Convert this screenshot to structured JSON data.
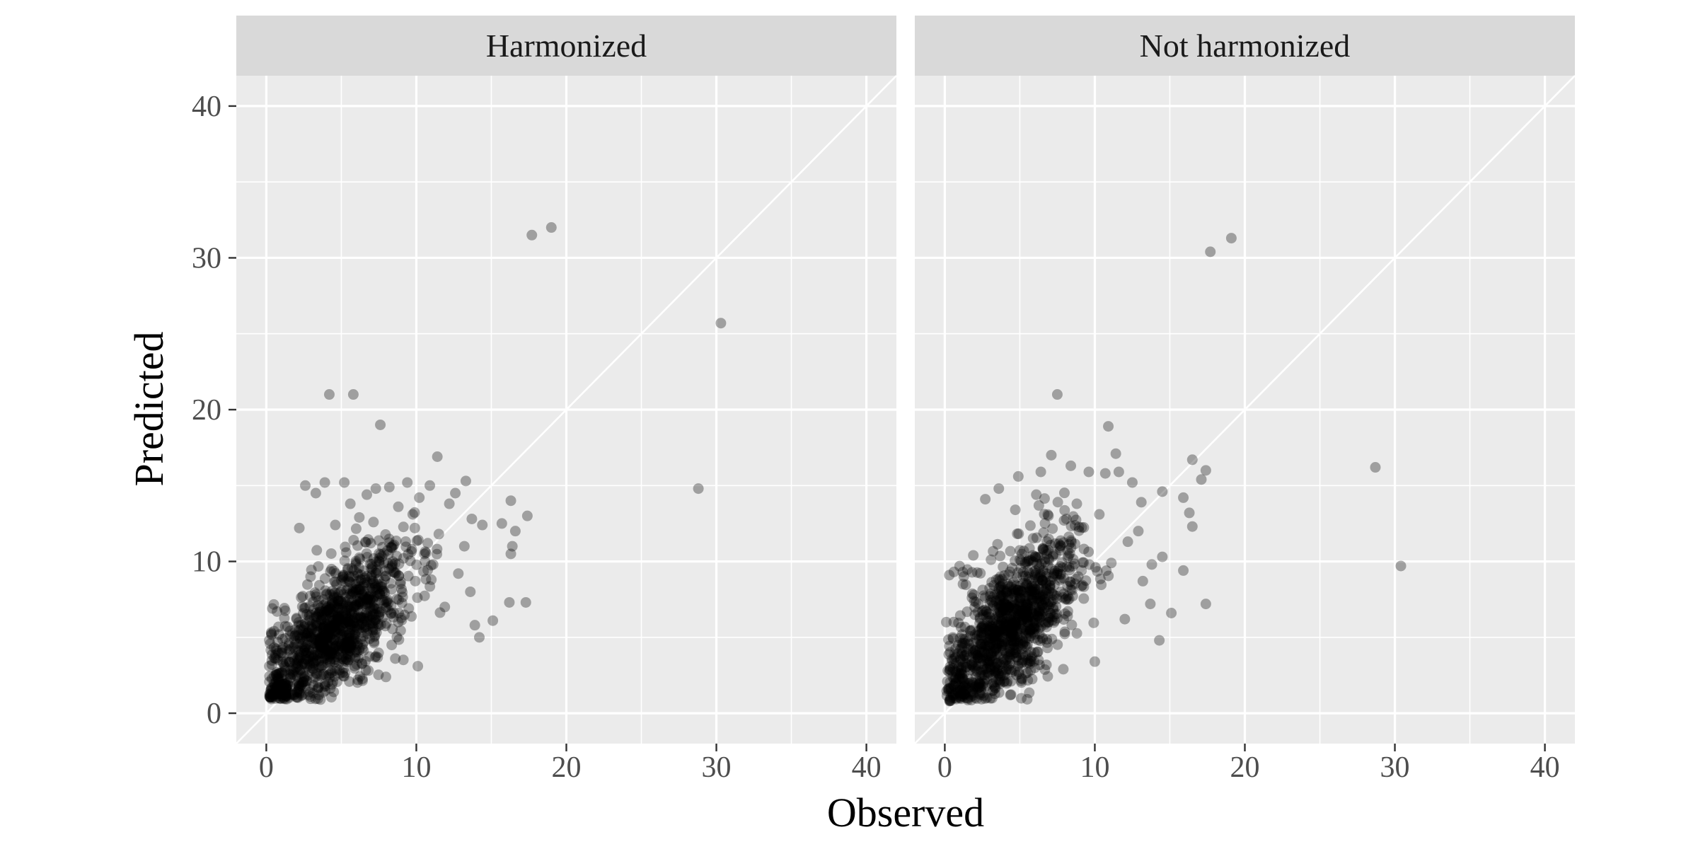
{
  "chart_data": {
    "type": "scatter",
    "xlabel": "Observed",
    "ylabel": "Predicted",
    "xlim": [
      -2,
      42
    ],
    "ylim": [
      -2,
      42
    ],
    "x_ticks": [
      0,
      10,
      20,
      30,
      40
    ],
    "y_ticks": [
      0,
      10,
      20,
      30,
      40
    ],
    "grid": true,
    "reference_line": "y = x",
    "point_color": "#000000",
    "point_opacity": 0.32,
    "background_color": "#ebebeb",
    "strip_color": "#d9d9d9",
    "panels": [
      {
        "strip": "Harmonized",
        "cluster": {
          "x_center": 4.5,
          "y_center": 5.2,
          "x_spread": 2.6,
          "y_spread": 2.6,
          "slope": 0.75,
          "count": 1150,
          "x_min": 0.2,
          "y_min": 0.9
        },
        "points": [
          {
            "x": 17.7,
            "y": 31.5
          },
          {
            "x": 19.0,
            "y": 32.0
          },
          {
            "x": 30.3,
            "y": 25.7
          },
          {
            "x": 28.8,
            "y": 14.8
          },
          {
            "x": 4.2,
            "y": 21.0
          },
          {
            "x": 5.8,
            "y": 21.0
          },
          {
            "x": 7.6,
            "y": 19.0
          },
          {
            "x": 11.4,
            "y": 16.9
          },
          {
            "x": 16.3,
            "y": 14.0
          },
          {
            "x": 17.4,
            "y": 13.0
          },
          {
            "x": 16.6,
            "y": 12.0
          },
          {
            "x": 16.4,
            "y": 11.0
          },
          {
            "x": 16.3,
            "y": 10.5
          },
          {
            "x": 15.7,
            "y": 12.5
          },
          {
            "x": 16.2,
            "y": 7.3
          },
          {
            "x": 17.3,
            "y": 7.3
          },
          {
            "x": 15.1,
            "y": 6.1
          },
          {
            "x": 14.2,
            "y": 5.0
          },
          {
            "x": 13.9,
            "y": 5.8
          },
          {
            "x": 13.7,
            "y": 12.8
          },
          {
            "x": 14.4,
            "y": 12.4
          },
          {
            "x": 13.3,
            "y": 15.3
          },
          {
            "x": 12.6,
            "y": 14.5
          },
          {
            "x": 12.2,
            "y": 13.8
          },
          {
            "x": 13.2,
            "y": 11.0
          },
          {
            "x": 13.6,
            "y": 8.0
          },
          {
            "x": 12.8,
            "y": 9.2
          },
          {
            "x": 11.9,
            "y": 7.0
          },
          {
            "x": 10.9,
            "y": 15.0
          },
          {
            "x": 10.2,
            "y": 14.2
          },
          {
            "x": 9.4,
            "y": 15.2
          },
          {
            "x": 8.2,
            "y": 14.9
          },
          {
            "x": 7.3,
            "y": 14.8
          },
          {
            "x": 5.2,
            "y": 15.2
          },
          {
            "x": 3.9,
            "y": 15.2
          },
          {
            "x": 2.6,
            "y": 15.0
          },
          {
            "x": 3.3,
            "y": 14.5
          },
          {
            "x": 5.6,
            "y": 13.8
          },
          {
            "x": 6.7,
            "y": 14.4
          },
          {
            "x": 8.8,
            "y": 13.6
          },
          {
            "x": 4.6,
            "y": 12.4
          },
          {
            "x": 2.2,
            "y": 12.2
          },
          {
            "x": 9.9,
            "y": 12.2
          },
          {
            "x": 11.5,
            "y": 11.8
          },
          {
            "x": 6.2,
            "y": 12.9
          },
          {
            "x": 10.1,
            "y": 3.1
          },
          {
            "x": 8.6,
            "y": 3.6
          },
          {
            "x": 6.1,
            "y": 2.2
          },
          {
            "x": 0.4,
            "y": 6.9
          },
          {
            "x": 0.2,
            "y": 4.8
          },
          {
            "x": 9.7,
            "y": 10.8
          },
          {
            "x": 11.0,
            "y": 8.8
          }
        ]
      },
      {
        "strip": "Not harmonized",
        "cluster": {
          "x_center": 4.2,
          "y_center": 5.6,
          "x_spread": 2.4,
          "y_spread": 2.9,
          "slope": 0.85,
          "count": 1150,
          "x_min": 0.1,
          "y_min": 0.8
        },
        "points": [
          {
            "x": 17.7,
            "y": 30.4
          },
          {
            "x": 19.1,
            "y": 31.3
          },
          {
            "x": 28.7,
            "y": 16.2
          },
          {
            "x": 30.4,
            "y": 9.7
          },
          {
            "x": 7.5,
            "y": 21.0
          },
          {
            "x": 10.9,
            "y": 18.9
          },
          {
            "x": 11.4,
            "y": 17.1
          },
          {
            "x": 7.1,
            "y": 17.0
          },
          {
            "x": 16.5,
            "y": 16.7
          },
          {
            "x": 17.4,
            "y": 16.0
          },
          {
            "x": 17.1,
            "y": 15.4
          },
          {
            "x": 16.3,
            "y": 13.2
          },
          {
            "x": 16.5,
            "y": 12.3
          },
          {
            "x": 15.9,
            "y": 14.2
          },
          {
            "x": 15.9,
            "y": 9.4
          },
          {
            "x": 17.4,
            "y": 7.2
          },
          {
            "x": 15.1,
            "y": 6.6
          },
          {
            "x": 14.3,
            "y": 4.8
          },
          {
            "x": 13.7,
            "y": 7.2
          },
          {
            "x": 14.5,
            "y": 10.3
          },
          {
            "x": 13.8,
            "y": 9.8
          },
          {
            "x": 14.5,
            "y": 14.6
          },
          {
            "x": 13.1,
            "y": 13.9
          },
          {
            "x": 12.5,
            "y": 15.2
          },
          {
            "x": 12.9,
            "y": 12.0
          },
          {
            "x": 13.2,
            "y": 8.7
          },
          {
            "x": 12.2,
            "y": 11.3
          },
          {
            "x": 11.6,
            "y": 15.9
          },
          {
            "x": 10.7,
            "y": 15.8
          },
          {
            "x": 9.6,
            "y": 15.9
          },
          {
            "x": 8.4,
            "y": 16.3
          },
          {
            "x": 6.4,
            "y": 15.9
          },
          {
            "x": 4.9,
            "y": 15.6
          },
          {
            "x": 3.6,
            "y": 14.8
          },
          {
            "x": 2.7,
            "y": 14.1
          },
          {
            "x": 4.7,
            "y": 13.4
          },
          {
            "x": 6.1,
            "y": 14.4
          },
          {
            "x": 8.8,
            "y": 13.8
          },
          {
            "x": 10.3,
            "y": 13.1
          },
          {
            "x": 1.9,
            "y": 10.4
          },
          {
            "x": 1.2,
            "y": 9.3
          },
          {
            "x": 0.3,
            "y": 9.1
          },
          {
            "x": 0.1,
            "y": 6.0
          },
          {
            "x": 0.2,
            "y": 2.8
          },
          {
            "x": 10.0,
            "y": 3.4
          },
          {
            "x": 7.9,
            "y": 2.9
          },
          {
            "x": 12.0,
            "y": 6.2
          },
          {
            "x": 11.1,
            "y": 9.9
          }
        ]
      }
    ]
  }
}
